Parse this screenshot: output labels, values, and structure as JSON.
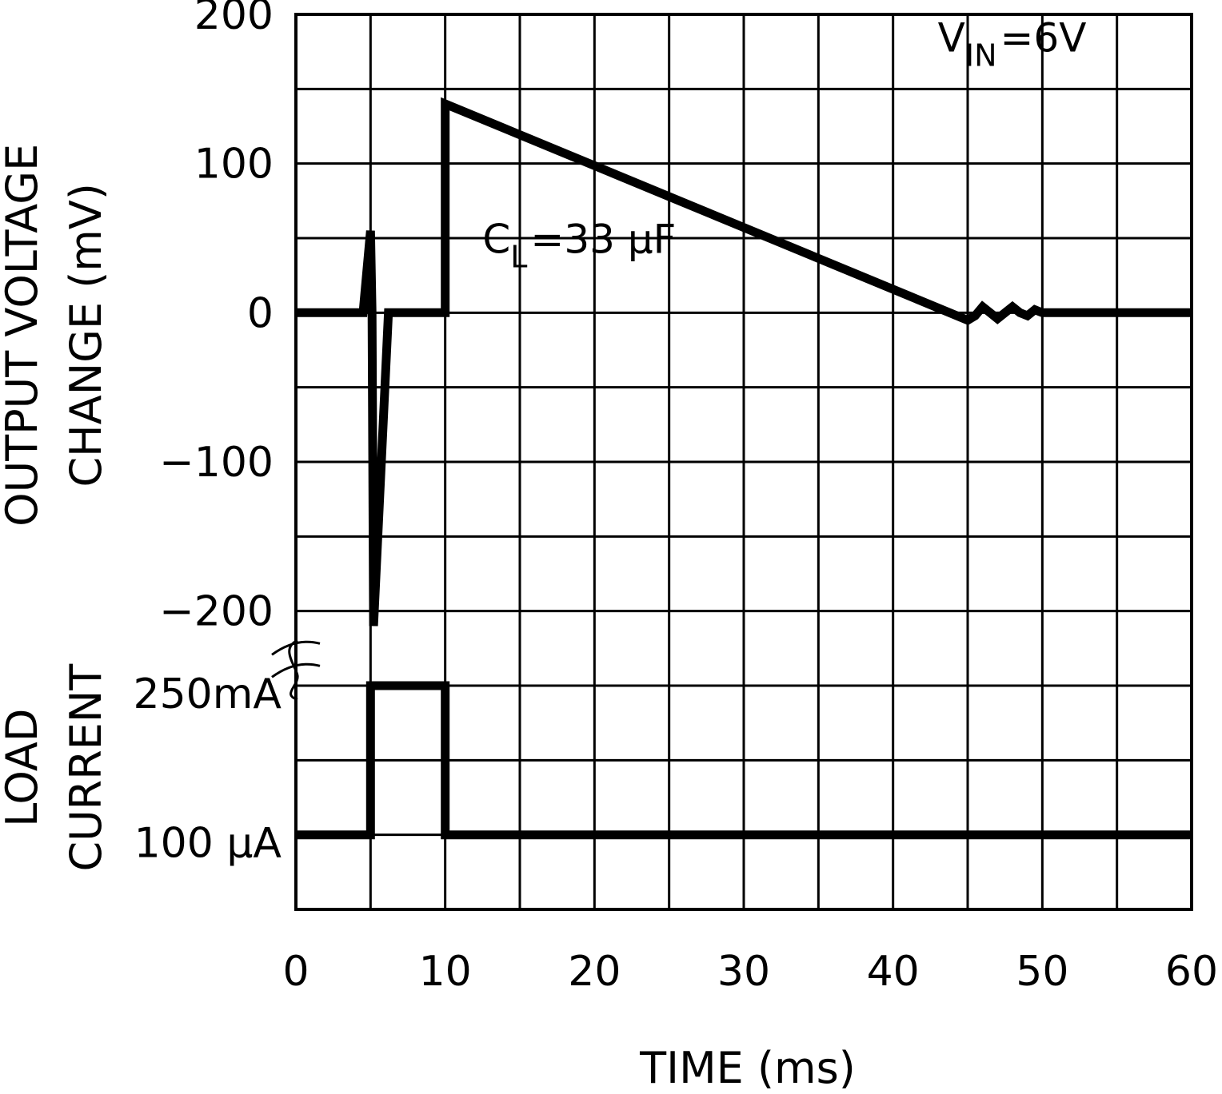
{
  "chart_data": {
    "type": "line",
    "title": "",
    "xlabel": "TIME (ms)",
    "x_ticks": [
      "0",
      "10",
      "20",
      "30",
      "40",
      "50",
      "60"
    ],
    "xlim": [
      0,
      60
    ],
    "grid": true,
    "upper_panel": {
      "ylabel_line1": "OUTPUT VOLTAGE",
      "ylabel_line2": "CHANGE (mV)",
      "y_ticks": [
        "200",
        "100",
        "0",
        "-100",
        "-200"
      ],
      "ylim": [
        -250,
        200
      ],
      "series": [
        {
          "name": "Output Voltage Change",
          "x": [
            0,
            4.5,
            5.0,
            5.1,
            5.2,
            6.2,
            6.4,
            10.0,
            10.0,
            45.0,
            45.5,
            46.0,
            46.5,
            47.0,
            47.5,
            48.0,
            48.5,
            49.0,
            49.5,
            50.0,
            60.0
          ],
          "y": [
            0,
            0,
            55,
            0,
            -210,
            0,
            0,
            0,
            140,
            -5,
            -2,
            4,
            0,
            -4,
            0,
            4,
            0,
            -2,
            2,
            0,
            0
          ]
        }
      ]
    },
    "lower_panel": {
      "ylabel_line1": "LOAD",
      "ylabel_line2": "CURRENT",
      "y_ticks": [
        "250mA",
        "100 µA"
      ],
      "series": [
        {
          "name": "Load Current",
          "x": [
            0,
            5.0,
            5.0,
            10.0,
            10.0,
            60.0
          ],
          "y": [
            "100 µA",
            "100 µA",
            "250mA",
            "250mA",
            "100 µA",
            "100 µA"
          ]
        }
      ]
    },
    "annotations": [
      {
        "name": "vin",
        "main": "V",
        "sub": "IN",
        "rest": "=6V",
        "anchor_x": 43,
        "anchor_y": 175
      },
      {
        "name": "cl",
        "main": "C",
        "sub": "L",
        "rest": "=33 µF",
        "anchor_x": 12.5,
        "anchor_y": 40
      }
    ]
  }
}
